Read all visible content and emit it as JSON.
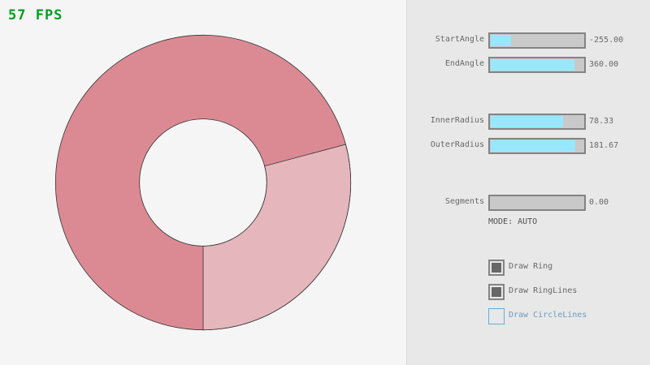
{
  "fps": "57 FPS",
  "ring": {
    "center_color": "#db8a93",
    "overlap_light_color": "#e5b6bc",
    "outline_color": "#333333"
  },
  "controls": {
    "sliders": [
      {
        "label": "StartAngle",
        "value": "-255.00",
        "fill": 0.22
      },
      {
        "label": "EndAngle",
        "value": "360.00",
        "fill": 0.9
      },
      {
        "label": "InnerRadius",
        "value": "78.33",
        "fill": 0.78
      },
      {
        "label": "OuterRadius",
        "value": "181.67",
        "fill": 0.91
      },
      {
        "label": "Segments",
        "value": "0.00",
        "fill": 0
      }
    ],
    "mode": "MODE: AUTO",
    "checkboxes": [
      {
        "label": "Draw Ring",
        "checked": true
      },
      {
        "label": "Draw RingLines",
        "checked": true
      },
      {
        "label": "Draw CircleLines",
        "checked": false
      }
    ]
  },
  "colors": {
    "slider_fill": "#97e8ff",
    "fps": "#00a020",
    "focus": "#5bb2d9"
  }
}
